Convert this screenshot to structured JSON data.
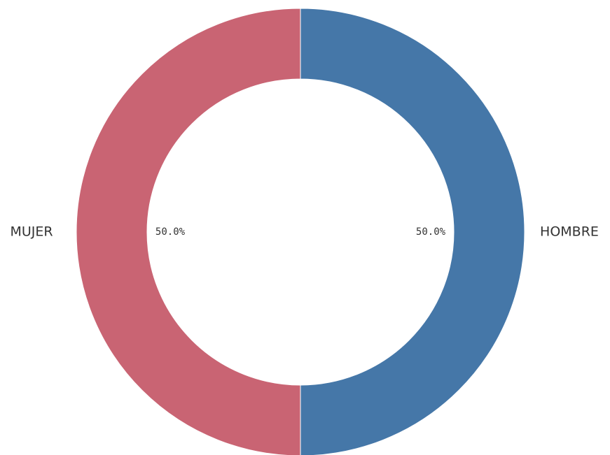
{
  "chart_data": {
    "type": "donut",
    "categories": [
      "HOMBRE",
      "MUJER"
    ],
    "values": [
      50,
      50
    ],
    "value_labels": [
      "50.0%",
      "50.0%"
    ],
    "colors": [
      "#4577a8",
      "#c96473"
    ]
  }
}
